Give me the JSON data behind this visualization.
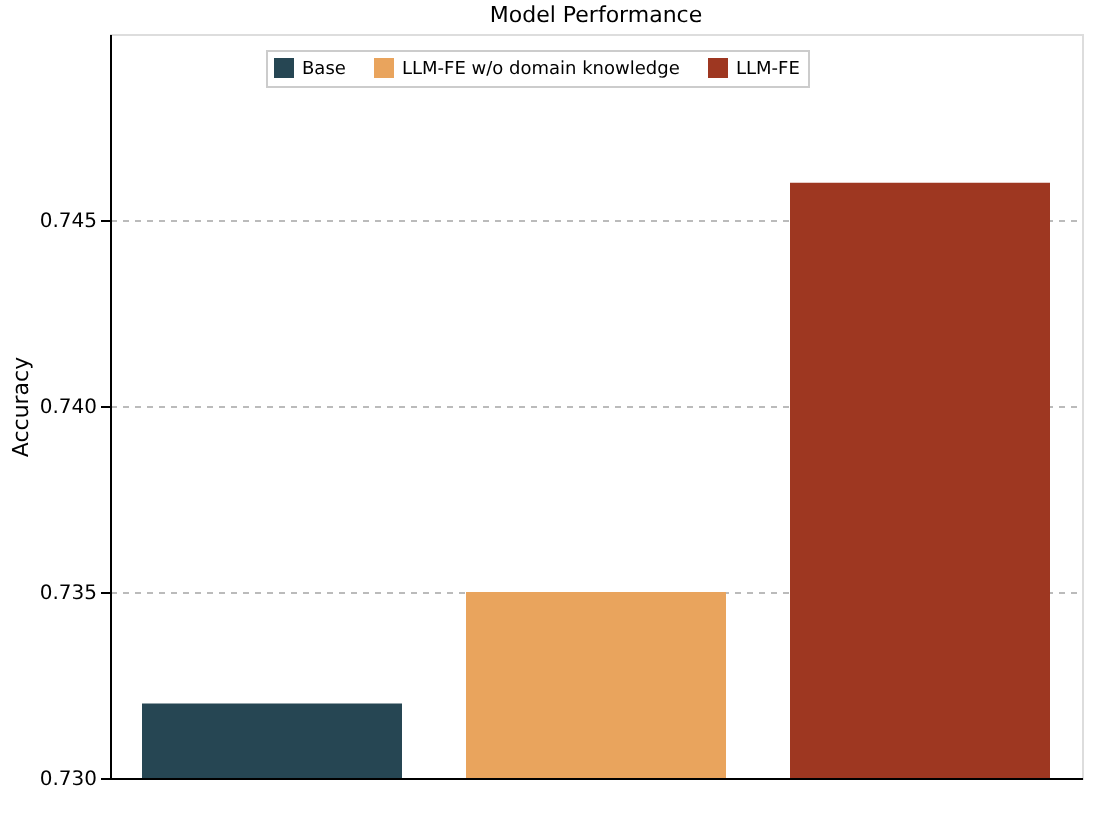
{
  "chart_data": {
    "type": "bar",
    "title": "Model Performance",
    "ylabel": "Accuracy",
    "categories": [
      null,
      null,
      null
    ],
    "series": [
      {
        "name": "Base",
        "color": "#264653",
        "values": [
          0.732,
          null,
          null
        ]
      },
      {
        "name": "LLM-FE w/o domain knowledge",
        "color": "#e9a45d",
        "values": [
          null,
          0.735,
          null
        ]
      },
      {
        "name": "LLM-FE",
        "color": "#9e3721",
        "values": [
          null,
          null,
          0.746
        ]
      }
    ],
    "ylim": [
      0.73,
      0.75
    ],
    "yticks": [
      {
        "value": 0.73,
        "label": "0.730"
      },
      0.735,
      {
        "value": 0.74,
        "label": "0.740"
      },
      0.745
    ],
    "grid": "y",
    "legend": "top",
    "tick_labels": "y"
  }
}
